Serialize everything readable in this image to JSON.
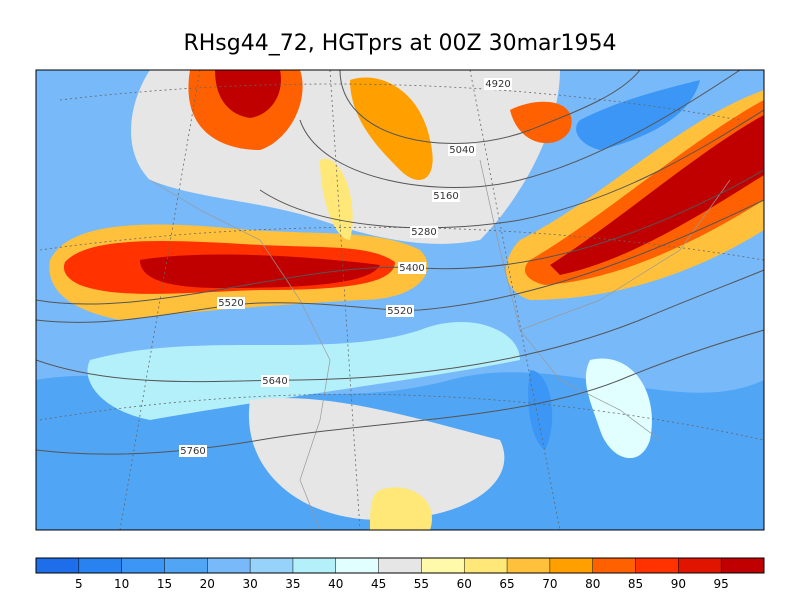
{
  "title": "RHsg44_72, HGTprs at 00Z  30mar1954",
  "contours": [
    {
      "label": "4920"
    },
    {
      "label": "5040"
    },
    {
      "label": "5160"
    },
    {
      "label": "5280"
    },
    {
      "label": "5400"
    },
    {
      "label": "5520"
    },
    {
      "label": "5520"
    },
    {
      "label": "5640"
    },
    {
      "label": "5760"
    }
  ],
  "colorbar": {
    "labels": [
      "5",
      "10",
      "15",
      "20",
      "30",
      "35",
      "40",
      "45",
      "55",
      "60",
      "65",
      "70",
      "80",
      "85",
      "90",
      "95"
    ],
    "colors": [
      "#1e6eeb",
      "#2882f0",
      "#3c96f5",
      "#50a5f5",
      "#78b9fa",
      "#96d2fa",
      "#b4f0fa",
      "#e1ffff",
      "#e6e6e6",
      "#fffaaa",
      "#ffe878",
      "#ffc03c",
      "#ffa000",
      "#ff6000",
      "#ff3200",
      "#e11400",
      "#c00000"
    ]
  }
}
